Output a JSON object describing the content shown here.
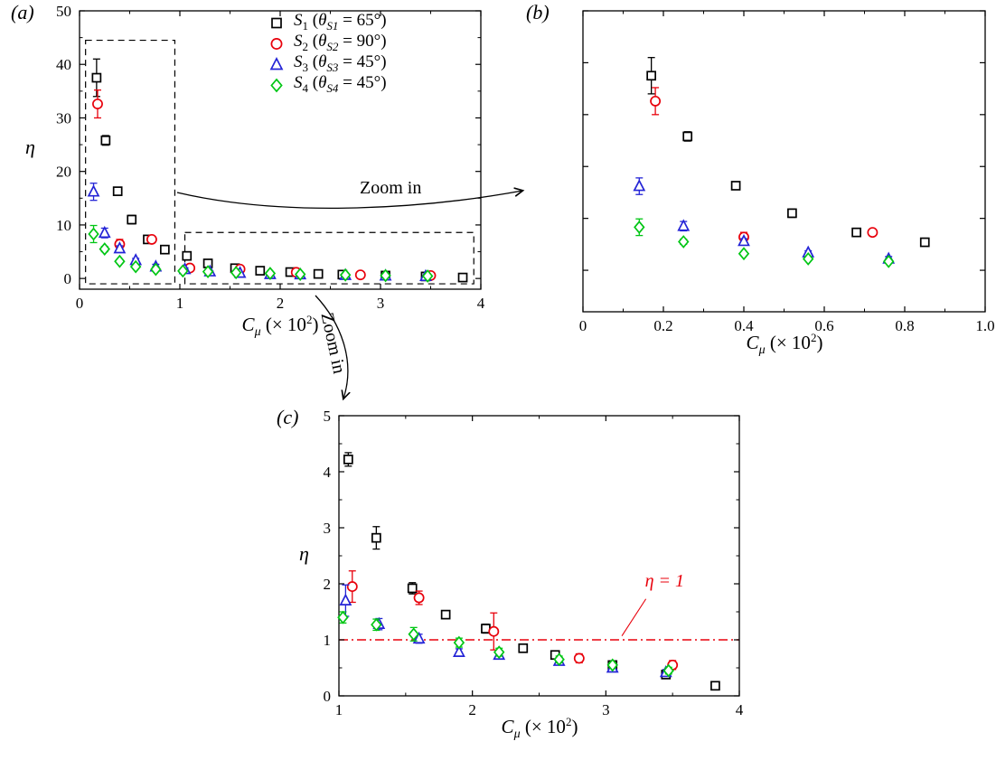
{
  "figure": {
    "panel_a_letter": "(a)",
    "panel_b_letter": "(b)",
    "panel_c_letter": "(c)",
    "zoom_in_label": "Zoom in"
  },
  "labels": {
    "ylabel": "η",
    "xlabel": {
      "pre": "C",
      "sub": "μ",
      "mid": " (× 10",
      "sup": "2",
      "post": ")"
    }
  },
  "legend": {
    "items": [
      {
        "series": "S1",
        "pre": "S",
        "sub1": "1",
        "paren": " (",
        "theta": "θ",
        "sub2": "S1",
        "post": " = 65°)"
      },
      {
        "series": "S2",
        "pre": "S",
        "sub1": "2",
        "paren": " (",
        "theta": "θ",
        "sub2": "S2",
        "post": " = 90°)"
      },
      {
        "series": "S3",
        "pre": "S",
        "sub1": "3",
        "paren": " (",
        "theta": "θ",
        "sub2": "S3",
        "post": " = 45°)"
      },
      {
        "series": "S4",
        "pre": "S",
        "sub1": "4",
        "paren": " (",
        "theta": "θ",
        "sub2": "S4",
        "post": " = 45°)"
      }
    ]
  },
  "chart_data": [
    {
      "id": "a",
      "type": "scatter",
      "title": "",
      "xlabel": "Cμ (× 10²)",
      "ylabel": "η",
      "xlim": [
        0,
        4
      ],
      "ylim": [
        -2,
        50
      ],
      "xticks": [
        0,
        1,
        2,
        3,
        4
      ],
      "xtick_labels": [
        "0",
        "1",
        "2",
        "3",
        "4"
      ],
      "yticks": [
        0,
        10,
        20,
        30,
        40,
        50
      ],
      "ytick_labels": [
        "0",
        "10",
        "20",
        "30",
        "40",
        "50"
      ],
      "minor_x": 0.5,
      "minor_y": 5,
      "grid": false,
      "legend_position": "upper-center",
      "boxes": [
        {
          "x0": 0.06,
          "x1": 0.95,
          "y0": -1,
          "y1": 44.5
        },
        {
          "x0": 1.05,
          "x1": 3.93,
          "y0": -1,
          "y1": 8.6
        }
      ],
      "series": [
        {
          "name": "S1",
          "marker": "square",
          "color": "#000000",
          "points": [
            [
              0.17,
              37.5,
              3.5
            ],
            [
              0.26,
              25.8,
              0.9
            ],
            [
              0.38,
              16.3,
              0.7
            ],
            [
              0.52,
              11.0,
              0.8
            ],
            [
              0.68,
              7.3,
              0.4
            ],
            [
              0.85,
              5.4,
              0.35
            ],
            [
              1.07,
              4.22,
              0.12
            ],
            [
              1.28,
              2.82,
              0.2
            ],
            [
              1.55,
              1.92,
              0.1
            ],
            [
              1.8,
              1.45,
              0.07
            ],
            [
              2.1,
              1.2,
              0.08
            ],
            [
              2.38,
              0.85,
              0.06
            ],
            [
              2.62,
              0.73,
              0.05
            ],
            [
              3.05,
              0.55,
              0.05
            ],
            [
              3.45,
              0.38,
              0.06
            ],
            [
              3.82,
              0.18,
              0.05
            ]
          ]
        },
        {
          "name": "S2",
          "marker": "circle",
          "color": "#e8000b",
          "points": [
            [
              0.18,
              32.6,
              2.6
            ],
            [
              0.4,
              6.4,
              0.9
            ],
            [
              0.72,
              7.3,
              0.3
            ],
            [
              1.1,
              1.95,
              0.28
            ],
            [
              1.6,
              1.75,
              0.12
            ],
            [
              2.16,
              1.15,
              0.33
            ],
            [
              2.8,
              0.67,
              0.08
            ],
            [
              3.5,
              0.55,
              0.08
            ]
          ]
        },
        {
          "name": "S3",
          "marker": "triangle",
          "color": "#2424d6",
          "points": [
            [
              0.14,
              16.2,
              1.6
            ],
            [
              0.25,
              8.5,
              0.9
            ],
            [
              0.4,
              5.6,
              0.5
            ],
            [
              0.56,
              3.4,
              0.35
            ],
            [
              0.76,
              2.2,
              0.45
            ],
            [
              1.05,
              1.7,
              0.28
            ],
            [
              1.3,
              1.28,
              0.1
            ],
            [
              1.6,
              1.02,
              0.08
            ],
            [
              1.9,
              0.78,
              0.06
            ],
            [
              2.2,
              0.73,
              0.07
            ],
            [
              2.65,
              0.62,
              0.05
            ],
            [
              3.05,
              0.5,
              0.05
            ],
            [
              3.45,
              0.42,
              0.05
            ]
          ]
        },
        {
          "name": "S4",
          "marker": "diamond",
          "color": "#00c614",
          "points": [
            [
              0.14,
              8.3,
              1.6
            ],
            [
              0.25,
              5.5,
              0.5
            ],
            [
              0.4,
              3.2,
              0.35
            ],
            [
              0.56,
              2.2,
              0.3
            ],
            [
              0.76,
              1.7,
              0.35
            ],
            [
              1.03,
              1.4,
              0.1
            ],
            [
              1.28,
              1.27,
              0.1
            ],
            [
              1.56,
              1.1,
              0.12
            ],
            [
              1.9,
              0.95,
              0.08
            ],
            [
              2.2,
              0.78,
              0.07
            ],
            [
              2.65,
              0.65,
              0.06
            ],
            [
              3.05,
              0.55,
              0.05
            ],
            [
              3.47,
              0.45,
              0.06
            ]
          ]
        }
      ]
    },
    {
      "id": "b",
      "type": "scatter",
      "title": "",
      "xlabel": "Cμ (× 10²)",
      "ylabel": "",
      "xlim": [
        0,
        1.0
      ],
      "ylim": [
        -8,
        50
      ],
      "xticks": [
        0,
        0.2,
        0.4,
        0.6,
        0.8,
        1.0
      ],
      "xtick_labels": [
        "0",
        "0.2",
        "0.4",
        "0.6",
        "0.8",
        "1.0"
      ],
      "yticks": [
        0,
        10,
        20,
        30,
        40,
        50
      ],
      "ytick_labels": [],
      "minor_x": 0.1,
      "grid": false,
      "series_ref": "a",
      "note": "zoom of panel (a) for Cμ×10² between 0 and 1"
    },
    {
      "id": "c",
      "type": "scatter",
      "title": "",
      "xlabel": "Cμ (× 10²)",
      "ylabel": "η",
      "xlim": [
        1,
        4
      ],
      "ylim": [
        0,
        5
      ],
      "xticks": [
        1,
        2,
        3,
        4
      ],
      "xtick_labels": [
        "1",
        "2",
        "3",
        "4"
      ],
      "yticks": [
        0,
        1,
        2,
        3,
        4,
        5
      ],
      "ytick_labels": [
        "0",
        "1",
        "2",
        "3",
        "4",
        "5"
      ],
      "minor_x": 0.5,
      "minor_y": 0.5,
      "grid": false,
      "series_ref": "a",
      "note": "zoom of panel (a) for Cμ×10² between 1 and 4",
      "hlines": [
        {
          "y": 1,
          "color": "#e8000b",
          "style": "dashdot"
        }
      ],
      "annotations": [
        {
          "text": "η = 1",
          "x": 3.44,
          "y": 1.95,
          "color": "#e8000b",
          "pointer": {
            "x1": 3.3,
            "y1": 1.73,
            "x2": 3.12,
            "y2": 1.07
          }
        }
      ]
    }
  ]
}
